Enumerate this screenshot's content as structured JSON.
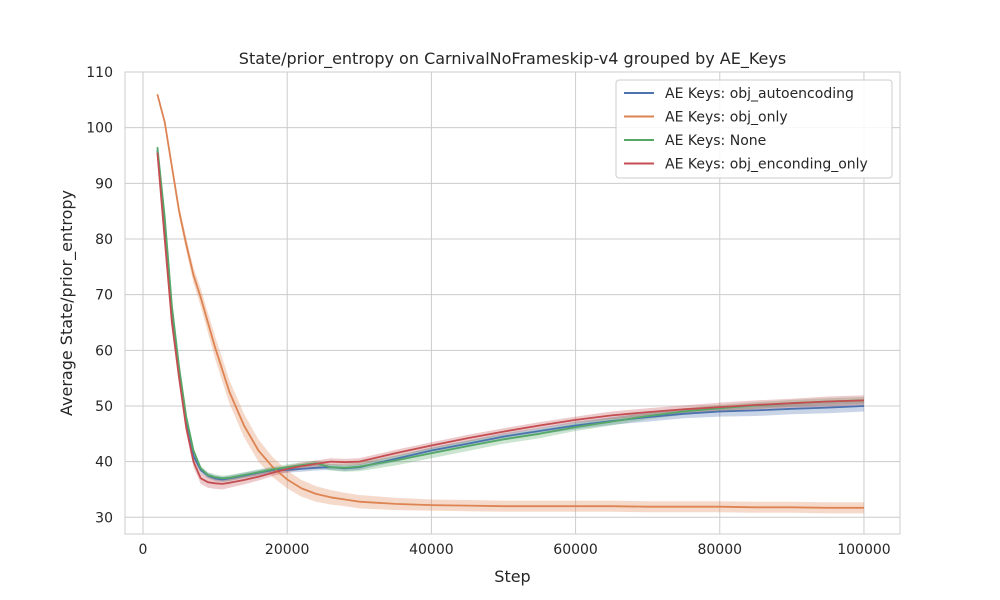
{
  "chart_data": {
    "type": "line",
    "title": "State/prior_entropy on CarnivalNoFrameskip-v4 grouped by AE_Keys",
    "xlabel": "Step",
    "ylabel": "Average State/prior_entropy",
    "xlim": [
      -2500,
      105000
    ],
    "ylim": [
      27,
      110
    ],
    "xticks": [
      0,
      20000,
      40000,
      60000,
      80000,
      100000
    ],
    "xtick_labels": [
      "0",
      "20000",
      "40000",
      "60000",
      "80000",
      "100000"
    ],
    "yticks": [
      30,
      40,
      50,
      60,
      70,
      80,
      90,
      100,
      110
    ],
    "ytick_labels": [
      "30",
      "40",
      "50",
      "60",
      "70",
      "80",
      "90",
      "100",
      "110"
    ],
    "grid": true,
    "legend_position": "top-right",
    "series": [
      {
        "name": "AE Keys: obj_autoencoding",
        "color": "#4c72b0",
        "x": [
          2000,
          3000,
          4000,
          5000,
          6000,
          7000,
          8000,
          9000,
          10000,
          11000,
          12000,
          14000,
          16000,
          18000,
          20000,
          22000,
          24000,
          26000,
          28000,
          30000,
          35000,
          40000,
          45000,
          50000,
          55000,
          60000,
          65000,
          70000,
          75000,
          80000,
          85000,
          90000,
          95000,
          100000
        ],
        "y": [
          96,
          82,
          66,
          56,
          47,
          41,
          38.5,
          37.5,
          37,
          36.8,
          37,
          37.5,
          38,
          38.5,
          38.5,
          38.7,
          38.9,
          39,
          38.8,
          39,
          40.5,
          42,
          43.2,
          44.5,
          45.5,
          46.5,
          47.3,
          48,
          48.6,
          49,
          49.2,
          49.5,
          49.7,
          50
        ],
        "band": [
          0.3,
          0.3,
          0.4,
          0.5,
          0.5,
          0.5,
          0.5,
          0.5,
          0.5,
          0.5,
          0.5,
          0.5,
          0.5,
          0.5,
          0.5,
          0.5,
          0.5,
          0.5,
          0.5,
          0.5,
          0.5,
          0.6,
          0.6,
          0.6,
          0.6,
          0.7,
          0.7,
          0.8,
          0.8,
          0.9,
          1.0,
          1.0,
          1.0,
          1.0
        ]
      },
      {
        "name": "AE Keys: obj_only",
        "color": "#dd8452",
        "x": [
          2000,
          3000,
          4000,
          5000,
          6000,
          7000,
          8000,
          9000,
          10000,
          11000,
          12000,
          14000,
          16000,
          18000,
          20000,
          22000,
          24000,
          26000,
          28000,
          30000,
          35000,
          40000,
          45000,
          50000,
          55000,
          60000,
          65000,
          70000,
          75000,
          80000,
          85000,
          90000,
          95000,
          100000
        ],
        "y": [
          106,
          101,
          93,
          85,
          79,
          73.5,
          69.5,
          65,
          60.5,
          56.5,
          52.5,
          46.5,
          42,
          39,
          36.8,
          35.2,
          34.2,
          33.6,
          33.2,
          32.8,
          32.4,
          32.2,
          32.1,
          32,
          32,
          32,
          32,
          31.9,
          31.9,
          31.9,
          31.8,
          31.8,
          31.7,
          31.7
        ],
        "band": [
          0.3,
          0.5,
          0.8,
          1.0,
          1.2,
          1.4,
          1.6,
          1.8,
          2.0,
          2.1,
          2.1,
          2.1,
          2.0,
          1.8,
          1.6,
          1.5,
          1.4,
          1.3,
          1.2,
          1.2,
          1.1,
          1.0,
          1.0,
          1.0,
          1.0,
          1.0,
          1.0,
          1.0,
          1.0,
          1.0,
          1.0,
          1.0,
          1.0,
          1.0
        ]
      },
      {
        "name": "AE Keys: None",
        "color": "#55a868",
        "x": [
          2000,
          3000,
          4000,
          5000,
          6000,
          7000,
          8000,
          9000,
          10000,
          11000,
          12000,
          14000,
          16000,
          18000,
          20000,
          22000,
          24000,
          26000,
          28000,
          30000,
          35000,
          40000,
          45000,
          50000,
          55000,
          60000,
          65000,
          70000,
          75000,
          80000,
          85000,
          90000,
          95000,
          100000
        ],
        "y": [
          96.5,
          84,
          68,
          57,
          48,
          42,
          38.8,
          37.6,
          37.2,
          37,
          37.1,
          37.6,
          38.1,
          38.6,
          39,
          39.4,
          39.7,
          39,
          38.9,
          39.1,
          40.2,
          41.5,
          42.8,
          44,
          45,
          46.2,
          47.2,
          48.2,
          49,
          49.6,
          50.1,
          50.5,
          50.8,
          51
        ],
        "band": [
          0.3,
          0.3,
          0.4,
          0.5,
          0.5,
          0.5,
          0.5,
          0.5,
          0.5,
          0.5,
          0.5,
          0.5,
          0.5,
          0.5,
          0.5,
          0.5,
          0.5,
          0.6,
          0.7,
          0.8,
          0.9,
          0.9,
          0.9,
          0.8,
          0.8,
          0.7,
          0.7,
          0.6,
          0.6,
          0.6,
          0.6,
          0.6,
          0.6,
          0.6
        ]
      },
      {
        "name": "AE Keys: obj_enconding_only",
        "color": "#c44e52",
        "x": [
          2000,
          3000,
          4000,
          5000,
          6000,
          7000,
          8000,
          9000,
          10000,
          11000,
          12000,
          14000,
          16000,
          18000,
          20000,
          22000,
          24000,
          26000,
          28000,
          30000,
          35000,
          40000,
          45000,
          50000,
          55000,
          60000,
          65000,
          70000,
          75000,
          80000,
          85000,
          90000,
          95000,
          100000
        ],
        "y": [
          95.5,
          80,
          65,
          55,
          46,
          40,
          37,
          36.3,
          36.1,
          36,
          36.2,
          36.7,
          37.3,
          38,
          38.7,
          39.2,
          39.6,
          40,
          39.9,
          40,
          41.5,
          42.9,
          44.2,
          45.4,
          46.5,
          47.5,
          48.3,
          48.9,
          49.4,
          49.8,
          50.2,
          50.5,
          50.8,
          51
        ],
        "band": [
          0.5,
          0.6,
          0.7,
          0.8,
          0.9,
          1.0,
          1.0,
          1.0,
          1.0,
          1.0,
          0.9,
          0.8,
          0.7,
          0.6,
          0.6,
          0.6,
          0.6,
          0.6,
          0.6,
          0.6,
          0.6,
          0.6,
          0.6,
          0.6,
          0.6,
          0.6,
          0.7,
          0.7,
          0.7,
          0.8,
          0.8,
          0.8,
          0.9,
          0.9
        ]
      }
    ]
  }
}
